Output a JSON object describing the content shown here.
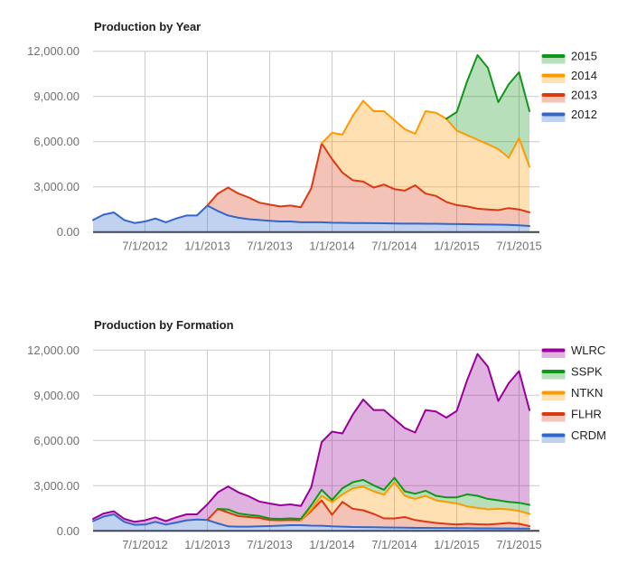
{
  "page": {
    "background": "#ffffff"
  },
  "style": {
    "grid_color": "#cccccc",
    "baseline_color": "#424242",
    "tick_label_color": "#717171",
    "title_color": "#212121",
    "legend_label_color": "#222222",
    "fill_opacity": 0.3,
    "line_width": 2
  },
  "chart_data": [
    {
      "type": "area",
      "stacked": true,
      "title": "Production by Year",
      "legend_position": "right",
      "x": [
        "2/1/2012",
        "3/1/2012",
        "4/1/2012",
        "5/1/2012",
        "6/1/2012",
        "7/1/2012",
        "8/1/2012",
        "9/1/2012",
        "10/1/2012",
        "11/1/2012",
        "12/1/2012",
        "1/1/2013",
        "2/1/2013",
        "3/1/2013",
        "4/1/2013",
        "5/1/2013",
        "6/1/2013",
        "7/1/2013",
        "8/1/2013",
        "9/1/2013",
        "10/1/2013",
        "11/1/2013",
        "12/1/2013",
        "1/1/2014",
        "2/1/2014",
        "3/1/2014",
        "4/1/2014",
        "5/1/2014",
        "6/1/2014",
        "7/1/2014",
        "8/1/2014",
        "9/1/2014",
        "10/1/2014",
        "11/1/2014",
        "12/1/2014",
        "1/1/2015",
        "2/1/2015",
        "3/1/2015",
        "4/1/2015",
        "5/1/2015",
        "6/1/2015",
        "7/1/2015",
        "8/1/2015"
      ],
      "x_axis": {
        "ticks": [
          "7/1/2012",
          "1/1/2013",
          "7/1/2013",
          "1/1/2014",
          "7/1/2014",
          "1/1/2015",
          "7/1/2015"
        ],
        "tick_months": [
          5,
          11,
          17,
          23,
          29,
          35,
          41
        ]
      },
      "y_axis": {
        "min": 0,
        "max": 12000,
        "values": [
          0,
          3000,
          6000,
          9000,
          12000
        ],
        "ticks": [
          "0.00",
          "3,000.00",
          "6,000.00",
          "9,000.00",
          "12,000.00"
        ]
      },
      "series": [
        {
          "name": "2012",
          "color": "#3366cc",
          "values": [
            800,
            1150,
            1300,
            800,
            600,
            700,
            900,
            650,
            900,
            1100,
            1100,
            1755,
            1400,
            1100,
            950,
            850,
            800,
            750,
            700,
            700,
            650,
            650,
            650,
            620,
            610,
            600,
            600,
            590,
            580,
            570,
            560,
            560,
            550,
            550,
            540,
            530,
            520,
            510,
            500,
            490,
            480,
            450,
            400
          ]
        },
        {
          "name": "2013",
          "color": "#dc3912",
          "values": [
            null,
            null,
            null,
            null,
            null,
            null,
            null,
            null,
            null,
            null,
            null,
            0,
            1150,
            1850,
            1600,
            1440,
            1150,
            1065,
            995,
            1055,
            1000,
            2250,
            5240,
            4220,
            3330,
            2840,
            2750,
            2360,
            2570,
            2280,
            2190,
            2540,
            2000,
            1850,
            1460,
            1260,
            1180,
            1040,
            1000,
            960,
            1110,
            1050,
            910
          ]
        },
        {
          "name": "2014",
          "color": "#ff9900",
          "values": [
            null,
            null,
            null,
            null,
            null,
            null,
            null,
            null,
            null,
            null,
            null,
            null,
            null,
            null,
            null,
            null,
            null,
            null,
            null,
            null,
            null,
            null,
            0,
            1750,
            2530,
            4280,
            5370,
            5070,
            4870,
            4570,
            4080,
            3430,
            5470,
            5520,
            5520,
            4940,
            4730,
            4580,
            4330,
            4050,
            3350,
            4730,
            3030
          ]
        },
        {
          "name": "2015",
          "color": "#109618",
          "values": [
            null,
            null,
            null,
            null,
            null,
            null,
            null,
            null,
            null,
            null,
            null,
            null,
            null,
            null,
            null,
            null,
            null,
            null,
            null,
            null,
            null,
            null,
            null,
            null,
            null,
            null,
            null,
            null,
            null,
            null,
            null,
            null,
            null,
            null,
            0,
            1230,
            3570,
            5610,
            5070,
            3120,
            4860,
            4380,
            3680
          ]
        }
      ],
      "legend_order_top_to_bottom": [
        "2015",
        "2014",
        "2013",
        "2012"
      ]
    },
    {
      "type": "area",
      "stacked": true,
      "title": "Production by Formation",
      "legend_position": "right",
      "x": [
        "2/1/2012",
        "3/1/2012",
        "4/1/2012",
        "5/1/2012",
        "6/1/2012",
        "7/1/2012",
        "8/1/2012",
        "9/1/2012",
        "10/1/2012",
        "11/1/2012",
        "12/1/2012",
        "1/1/2013",
        "2/1/2013",
        "3/1/2013",
        "4/1/2013",
        "5/1/2013",
        "6/1/2013",
        "7/1/2013",
        "8/1/2013",
        "9/1/2013",
        "10/1/2013",
        "11/1/2013",
        "12/1/2013",
        "1/1/2014",
        "2/1/2014",
        "3/1/2014",
        "4/1/2014",
        "5/1/2014",
        "6/1/2014",
        "7/1/2014",
        "8/1/2014",
        "9/1/2014",
        "10/1/2014",
        "11/1/2014",
        "12/1/2014",
        "1/1/2015",
        "2/1/2015",
        "3/1/2015",
        "4/1/2015",
        "5/1/2015",
        "6/1/2015",
        "7/1/2015",
        "8/1/2015"
      ],
      "x_axis": {
        "ticks": [
          "7/1/2012",
          "1/1/2013",
          "7/1/2013",
          "1/1/2014",
          "7/1/2014",
          "1/1/2015",
          "7/1/2015"
        ],
        "tick_months": [
          5,
          11,
          17,
          23,
          29,
          35,
          41
        ]
      },
      "y_axis": {
        "min": 0,
        "max": 12000,
        "values": [
          0,
          3000,
          6000,
          9000,
          12000
        ],
        "ticks": [
          "0.00",
          "3,000.00",
          "6,000.00",
          "9,000.00",
          "12,000.00"
        ]
      },
      "series": [
        {
          "name": "CRDM",
          "color": "#3366cc",
          "values": [
            650,
            950,
            1100,
            600,
            400,
            420,
            600,
            420,
            550,
            700,
            750,
            720,
            500,
            300,
            280,
            280,
            300,
            320,
            350,
            380,
            380,
            350,
            340,
            300,
            280,
            260,
            250,
            240,
            230,
            220,
            210,
            200,
            200,
            190,
            190,
            180,
            180,
            170,
            170,
            160,
            160,
            150,
            150
          ]
        },
        {
          "name": "FLHR",
          "color": "#dc3912",
          "values": [
            null,
            null,
            null,
            null,
            null,
            null,
            null,
            null,
            null,
            null,
            null,
            0,
            960,
            920,
            700,
            640,
            560,
            400,
            350,
            340,
            320,
            975,
            1690,
            765,
            1645,
            1205,
            1115,
            885,
            595,
            605,
            710,
            520,
            420,
            335,
            275,
            240,
            285,
            270,
            250,
            305,
            365,
            315,
            170
          ]
        },
        {
          "name": "NTKN",
          "color": "#ff9900",
          "values": [
            null,
            null,
            null,
            null,
            null,
            null,
            null,
            null,
            null,
            null,
            null,
            null,
            null,
            null,
            null,
            null,
            null,
            null,
            null,
            null,
            0,
            100,
            300,
            835,
            500,
            1360,
            1560,
            1500,
            1575,
            2405,
            1405,
            1405,
            1705,
            1505,
            1460,
            1405,
            1160,
            1085,
            1005,
            1000,
            900,
            860,
            805
          ]
        },
        {
          "name": "SSPK",
          "color": "#109618",
          "values": [
            null,
            null,
            null,
            null,
            null,
            null,
            null,
            null,
            null,
            null,
            null,
            null,
            0,
            200,
            170,
            140,
            130,
            100,
            100,
            110,
            100,
            275,
            395,
            150,
            400,
            405,
            460,
            400,
            325,
            300,
            300,
            340,
            340,
            295,
            300,
            400,
            800,
            800,
            700,
            565,
            500,
            540,
            600
          ]
        },
        {
          "name": "WLRC",
          "color": "#990099",
          "values": [
            150,
            200,
            200,
            200,
            200,
            280,
            300,
            230,
            350,
            400,
            350,
            1035,
            1090,
            1530,
            1400,
            1230,
            960,
            995,
            895,
            925,
            850,
            1200,
            3165,
            4540,
            3645,
            4490,
            5335,
            4995,
            5295,
            3890,
            4205,
            4065,
            5355,
            5595,
            5295,
            5735,
            7575,
            9415,
            8775,
            6590,
            7875,
            8745,
            6295
          ]
        }
      ],
      "legend_order_top_to_bottom": [
        "WLRC",
        "SSPK",
        "NTKN",
        "FLHR",
        "CRDM"
      ]
    }
  ]
}
